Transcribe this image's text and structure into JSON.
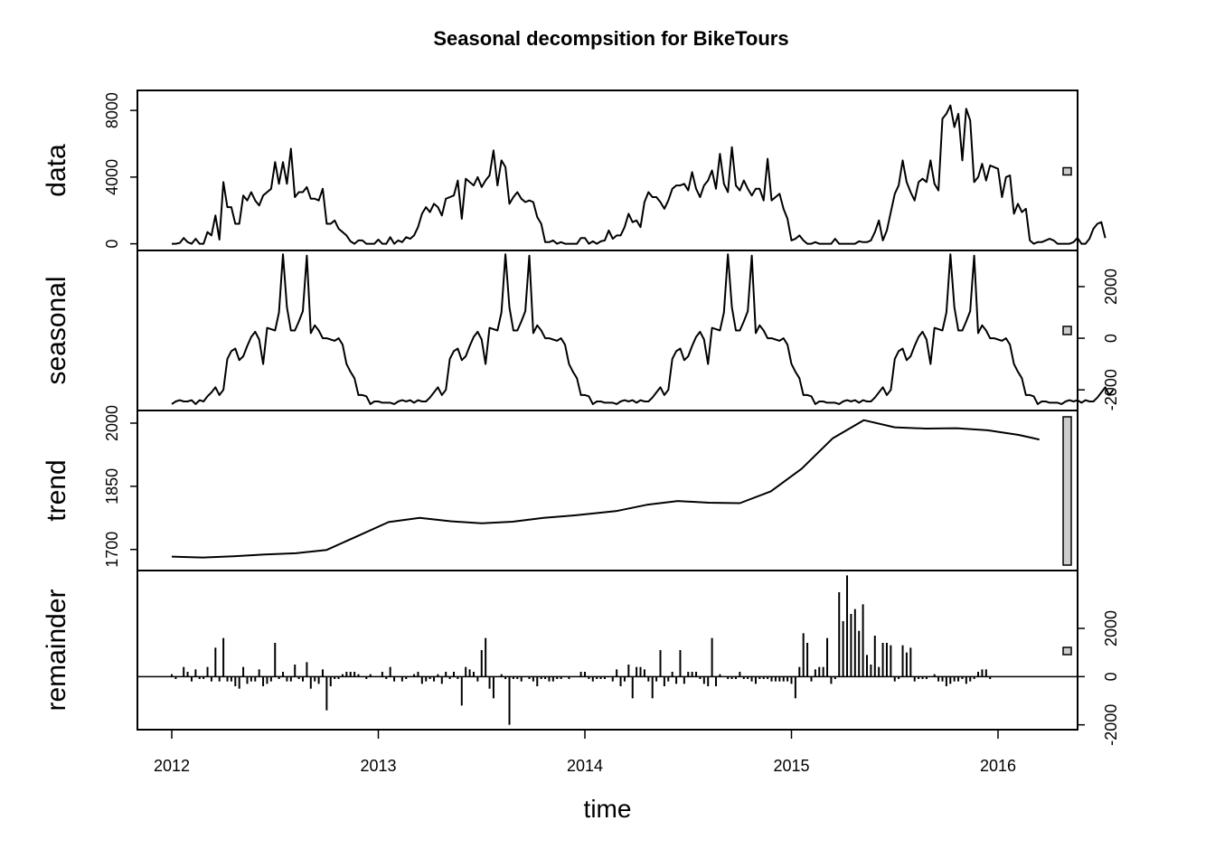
{
  "chart_data": {
    "type": "line",
    "title": "Seasonal decompsition for  BikeTours",
    "xlabel": "time",
    "x_ticks": [
      "2012",
      "2013",
      "2014",
      "2015",
      "2016"
    ],
    "x_start": 2012.0,
    "x_step_weeks": 52,
    "panels": [
      {
        "name": "data",
        "label": "data",
        "tick_side": "left",
        "ticks": [
          {
            "v": 0,
            "label": "0"
          },
          {
            "v": 4000,
            "label": "4000"
          },
          {
            "v": 8000,
            "label": "8000"
          }
        ],
        "ylim": [
          -400,
          9200
        ],
        "style": "line",
        "values": [
          0,
          0,
          50,
          350,
          100,
          0,
          300,
          0,
          0,
          700,
          500,
          1700,
          250,
          3700,
          2200,
          2200,
          1200,
          1200,
          2900,
          2600,
          3100,
          2600,
          2300,
          2900,
          3100,
          3300,
          4900,
          3600,
          4900,
          3600,
          5700,
          2800,
          3100,
          3100,
          3400,
          2700,
          2700,
          2600,
          3300,
          1200,
          1200,
          1400,
          900,
          700,
          500,
          150,
          0,
          200,
          200,
          0,
          0,
          0,
          250,
          0,
          0,
          400,
          0,
          200,
          100,
          400,
          300,
          500,
          1000,
          1800,
          2200,
          1900,
          2400,
          2200,
          1700,
          2700,
          2800,
          2900,
          3800,
          1500,
          3900,
          3700,
          3500,
          4000,
          3400,
          3800,
          4100,
          5600,
          3500,
          5000,
          4600,
          2400,
          2800,
          3100,
          2700,
          2500,
          2600,
          2500,
          1600,
          1200,
          100,
          100,
          200,
          0,
          100,
          0,
          0,
          0,
          0,
          350,
          350,
          0,
          150,
          0,
          150,
          200,
          800,
          300,
          500,
          500,
          1000,
          1800,
          1300,
          1400,
          1000,
          2500,
          3100,
          2800,
          2800,
          2500,
          2100,
          2600,
          3300,
          3500,
          3500,
          3600,
          3200,
          4300,
          3300,
          2800,
          3500,
          3800,
          4400,
          3300,
          5400,
          3600,
          3100,
          5800,
          3500,
          3200,
          3800,
          3300,
          2900,
          3300,
          3300,
          2600,
          5100,
          2600,
          2800,
          3000,
          2100,
          1500,
          200,
          300,
          500,
          200,
          0,
          0,
          100,
          0,
          0,
          0,
          0,
          300,
          0,
          0,
          0,
          0,
          0,
          150,
          100,
          100,
          200,
          700,
          1400,
          200,
          800,
          1900,
          3000,
          3500,
          5000,
          3700,
          3100,
          2600,
          3700,
          3900,
          3700,
          5000,
          3600,
          3200,
          7500,
          7800,
          8300,
          7000,
          7800,
          5000,
          8100,
          7400,
          3700,
          4000,
          4800,
          3800,
          4700,
          4600,
          4500,
          2800,
          4000,
          4100,
          1800,
          2400,
          1900,
          2100,
          200,
          0,
          100,
          100,
          200,
          300,
          200,
          0,
          0,
          0,
          0,
          100,
          350,
          0,
          0,
          300,
          900,
          1200,
          1300,
          350
        ]
      },
      {
        "name": "seasonal",
        "label": "seasonal",
        "tick_side": "right",
        "ticks": [
          {
            "v": -2000,
            "label": "-2000"
          },
          {
            "v": 0,
            "label": "0"
          },
          {
            "v": 2000,
            "label": "2000"
          }
        ],
        "ylim": [
          -2800,
          3400
        ],
        "style": "line",
        "values": [
          -2550,
          -2450,
          -2400,
          -2450,
          -2450,
          -2400,
          -2550,
          -2400,
          -2450,
          -2250,
          -2100,
          -1900,
          -2200,
          -2000,
          -800,
          -500,
          -400,
          -850,
          -700,
          -300,
          50,
          250,
          -50,
          -1000,
          400,
          350,
          300,
          1000,
          3250,
          1200,
          300,
          300,
          650,
          1050,
          3200,
          200,
          500,
          300,
          0,
          0,
          -50,
          -100,
          0,
          -250,
          -1000,
          -1300,
          -1550,
          -2200,
          -2200,
          -2250,
          -2550,
          -2450,
          -2450,
          -2500,
          -2500,
          -2500,
          -2550,
          -2450,
          -2400,
          -2450,
          -2400,
          -2500,
          -2400,
          -2450,
          -2450,
          -2300,
          -2100,
          -1900,
          -2200,
          -2000,
          -800,
          -500,
          -400,
          -850,
          -700,
          -300,
          50,
          250,
          -50,
          -1000,
          400,
          350,
          300,
          1000,
          3250,
          1200,
          300,
          300,
          650,
          1050,
          3200,
          200,
          500,
          300,
          0,
          0,
          -50,
          -100,
          0,
          -250,
          -1000,
          -1300,
          -1550,
          -2200,
          -2200,
          -2250,
          -2550,
          -2450,
          -2450,
          -2500,
          -2500,
          -2500,
          -2550,
          -2450,
          -2400,
          -2450,
          -2400,
          -2500,
          -2400,
          -2450,
          -2450,
          -2300,
          -2100,
          -1900,
          -2200,
          -2000,
          -800,
          -500,
          -400,
          -850,
          -700,
          -300,
          50,
          250,
          -50,
          -1000,
          400,
          350,
          300,
          1000,
          3250,
          1200,
          300,
          300,
          650,
          1050,
          3200,
          200,
          500,
          300,
          0,
          0,
          -50,
          -100,
          0,
          -250,
          -1000,
          -1300,
          -1550,
          -2200,
          -2200,
          -2250,
          -2550,
          -2450,
          -2450,
          -2500,
          -2500,
          -2500,
          -2550,
          -2450,
          -2400,
          -2450,
          -2400,
          -2500,
          -2400,
          -2450,
          -2450,
          -2300,
          -2100,
          -1900,
          -2200,
          -2000,
          -800,
          -500,
          -400,
          -850,
          -700,
          -300,
          50,
          250,
          -50,
          -1000,
          400,
          350,
          300,
          1000,
          3250,
          1200,
          300,
          300,
          650,
          1050,
          3200,
          200,
          500,
          300,
          0,
          0,
          -50,
          -100,
          0,
          -250,
          -1000,
          -1300,
          -1550,
          -2200,
          -2200,
          -2250,
          -2550,
          -2450,
          -2450,
          -2500,
          -2500,
          -2500,
          -2550,
          -2450,
          -2400,
          -2450,
          -2400,
          -2500,
          -2400,
          -2450,
          -2450,
          -2300,
          -2100,
          -1900,
          -2200,
          -2000
        ]
      },
      {
        "name": "trend",
        "label": "trend",
        "tick_side": "left",
        "ticks": [
          {
            "v": 1700,
            "label": "1700"
          },
          {
            "v": 1850,
            "label": "1850"
          },
          {
            "v": 2000,
            "label": "2000"
          }
        ],
        "ylim": [
          1650,
          2030
        ],
        "style": "line",
        "knots_t": [
          2012.0,
          2012.15,
          2012.3,
          2012.45,
          2012.6,
          2012.75,
          2012.9,
          2013.05,
          2013.2,
          2013.35,
          2013.5,
          2013.65,
          2013.8,
          2013.95,
          2014.15,
          2014.3,
          2014.45,
          2014.6,
          2014.75,
          2014.9,
          2015.05,
          2015.2,
          2015.35,
          2015.5,
          2015.65,
          2015.8,
          2015.95,
          2016.1,
          2016.2
        ],
        "knots_v": [
          1683,
          1681,
          1684,
          1688,
          1691,
          1699,
          1732,
          1765,
          1775,
          1767,
          1762,
          1766,
          1775,
          1781,
          1791,
          1806,
          1815,
          1811,
          1810,
          1838,
          1892,
          1964,
          2007,
          1990,
          1987,
          1988,
          1983,
          1972,
          1961
        ]
      },
      {
        "name": "remainder",
        "label": "remainder",
        "tick_side": "right",
        "ticks": [
          {
            "v": -2000,
            "label": "-2000"
          },
          {
            "v": 0,
            "label": "0"
          },
          {
            "v": 2000,
            "label": "2000"
          }
        ],
        "ylim": [
          -2200,
          4400
        ],
        "style": "spikes",
        "values": [
          100,
          -100,
          0,
          400,
          200,
          -200,
          300,
          -100,
          -100,
          400,
          -200,
          1200,
          -200,
          1600,
          -200,
          -200,
          -400,
          -500,
          400,
          -300,
          -200,
          -200,
          300,
          -400,
          -300,
          -200,
          1400,
          -100,
          200,
          -200,
          -200,
          500,
          -100,
          -200,
          600,
          -500,
          -200,
          -300,
          300,
          -1400,
          -400,
          -100,
          -100,
          100,
          200,
          200,
          200,
          100,
          0,
          -100,
          100,
          0,
          0,
          200,
          -100,
          400,
          -200,
          0,
          -200,
          -100,
          0,
          100,
          200,
          -300,
          -200,
          -100,
          -200,
          100,
          -300,
          200,
          -100,
          200,
          -100,
          -1200,
          400,
          300,
          200,
          -200,
          1100,
          1600,
          -500,
          -900,
          0,
          100,
          -100,
          -2000,
          -100,
          -100,
          -200,
          0,
          -100,
          -200,
          -400,
          -100,
          -100,
          -200,
          -200,
          -100,
          -100,
          0,
          -100,
          0,
          0,
          200,
          200,
          -100,
          -200,
          -100,
          -100,
          -100,
          0,
          -200,
          300,
          -400,
          -200,
          500,
          -900,
          400,
          400,
          300,
          -200,
          -900,
          -200,
          1100,
          -400,
          -200,
          200,
          -300,
          1100,
          -300,
          200,
          200,
          200,
          -100,
          -300,
          -400,
          1600,
          -400,
          100,
          0,
          -100,
          -100,
          -100,
          200,
          -100,
          -100,
          -200,
          -300,
          -100,
          -100,
          -100,
          -200,
          -200,
          -200,
          -200,
          -200,
          -300,
          -900,
          400,
          1800,
          1400,
          -200,
          300,
          400,
          400,
          1600,
          -300,
          -100,
          3500,
          2300,
          4200,
          2600,
          2800,
          1900,
          3000,
          900,
          500,
          1700,
          400,
          1400,
          1400,
          1300,
          -200,
          -100,
          1300,
          1000,
          1200,
          -200,
          -100,
          -100,
          -100,
          0,
          100,
          -200,
          -200,
          -400,
          -300,
          -200,
          -200,
          -100,
          -300,
          -200,
          -100,
          200,
          300,
          300,
          -100,
          0,
          0,
          0,
          0,
          0,
          0
        ]
      }
    ]
  }
}
